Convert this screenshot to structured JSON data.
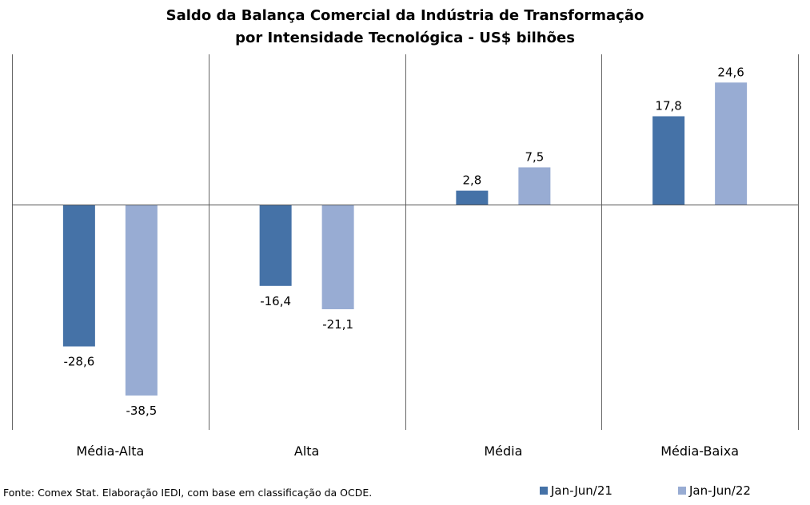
{
  "title": {
    "line1": "Saldo da Balança Comercial da Indústria de Transformação",
    "line2": "por Intensidade Tecnológica - US$ bilhões"
  },
  "source": "Fonte: Comex Stat. Elaboração IEDI, com base em classificação da OCDE.",
  "colors": {
    "series1": "#4572A7",
    "series2": "#98ACD3",
    "axis": "#555555",
    "grid": "#666666"
  },
  "chart_data": {
    "type": "bar",
    "categories": [
      "Média-Alta",
      "Alta",
      "Média",
      "Média-Baixa"
    ],
    "series": [
      {
        "name": "Jan-Jun/21",
        "values": [
          -28.6,
          -16.4,
          2.8,
          17.8
        ],
        "labels": [
          "-28,6",
          "-16,4",
          "2,8",
          "17,8"
        ]
      },
      {
        "name": "Jan-Jun/22",
        "values": [
          -38.5,
          -21.1,
          7.5,
          24.6
        ],
        "labels": [
          "-38,5",
          "-21,1",
          "7,5",
          "24,6"
        ]
      }
    ],
    "ylim": [
      -45,
      30
    ],
    "grid": false,
    "legend": "bottom-right"
  }
}
